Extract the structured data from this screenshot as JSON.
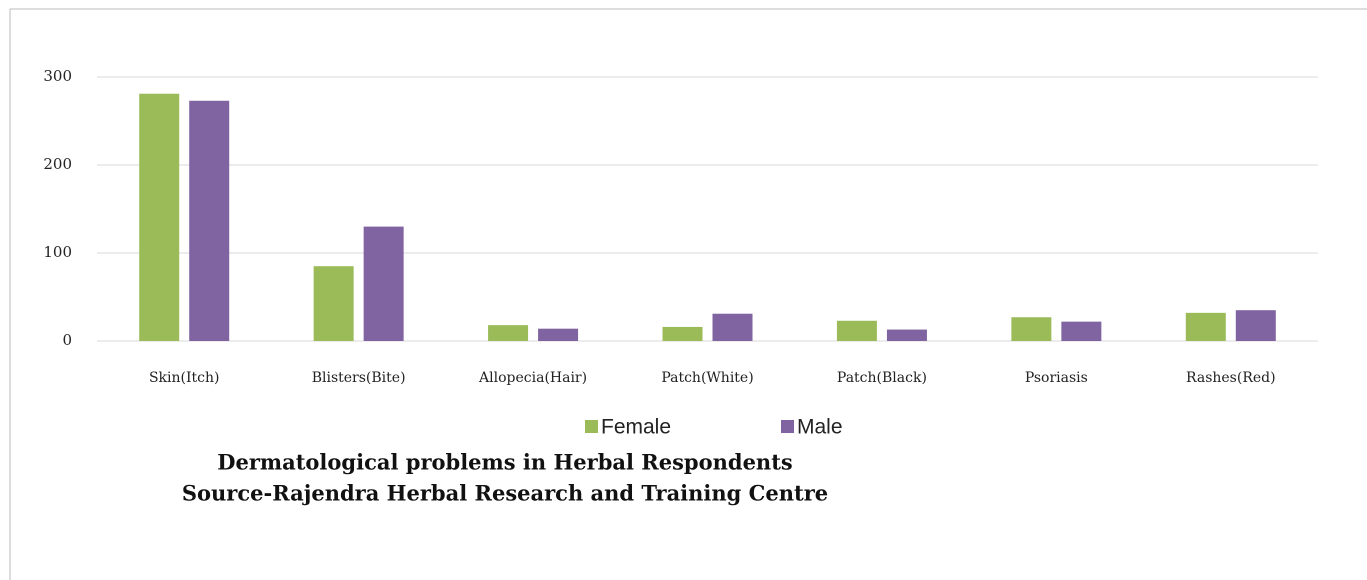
{
  "chart_data": {
    "type": "bar",
    "title": "Dermatological problems in Herbal Respondents",
    "subtitle": "Source-Rajendra Herbal Research and Training Centre",
    "categories": [
      "Skin(Itch)",
      "Blisters(Bite)",
      "Allopecia(Hair)",
      "Patch(White)",
      "Patch(Black)",
      "Psoriasis",
      "Rashes(Red)"
    ],
    "series": [
      {
        "name": "Female",
        "color": "#9bbb59",
        "values": [
          281,
          85,
          18,
          16,
          23,
          27,
          32
        ]
      },
      {
        "name": "Male",
        "color": "#8064a2",
        "values": [
          273,
          130,
          14,
          31,
          13,
          22,
          35
        ]
      }
    ],
    "ylim": [
      0,
      300
    ],
    "yticks": [
      0,
      100,
      200,
      300
    ],
    "grid": true,
    "legend": "bottom"
  }
}
